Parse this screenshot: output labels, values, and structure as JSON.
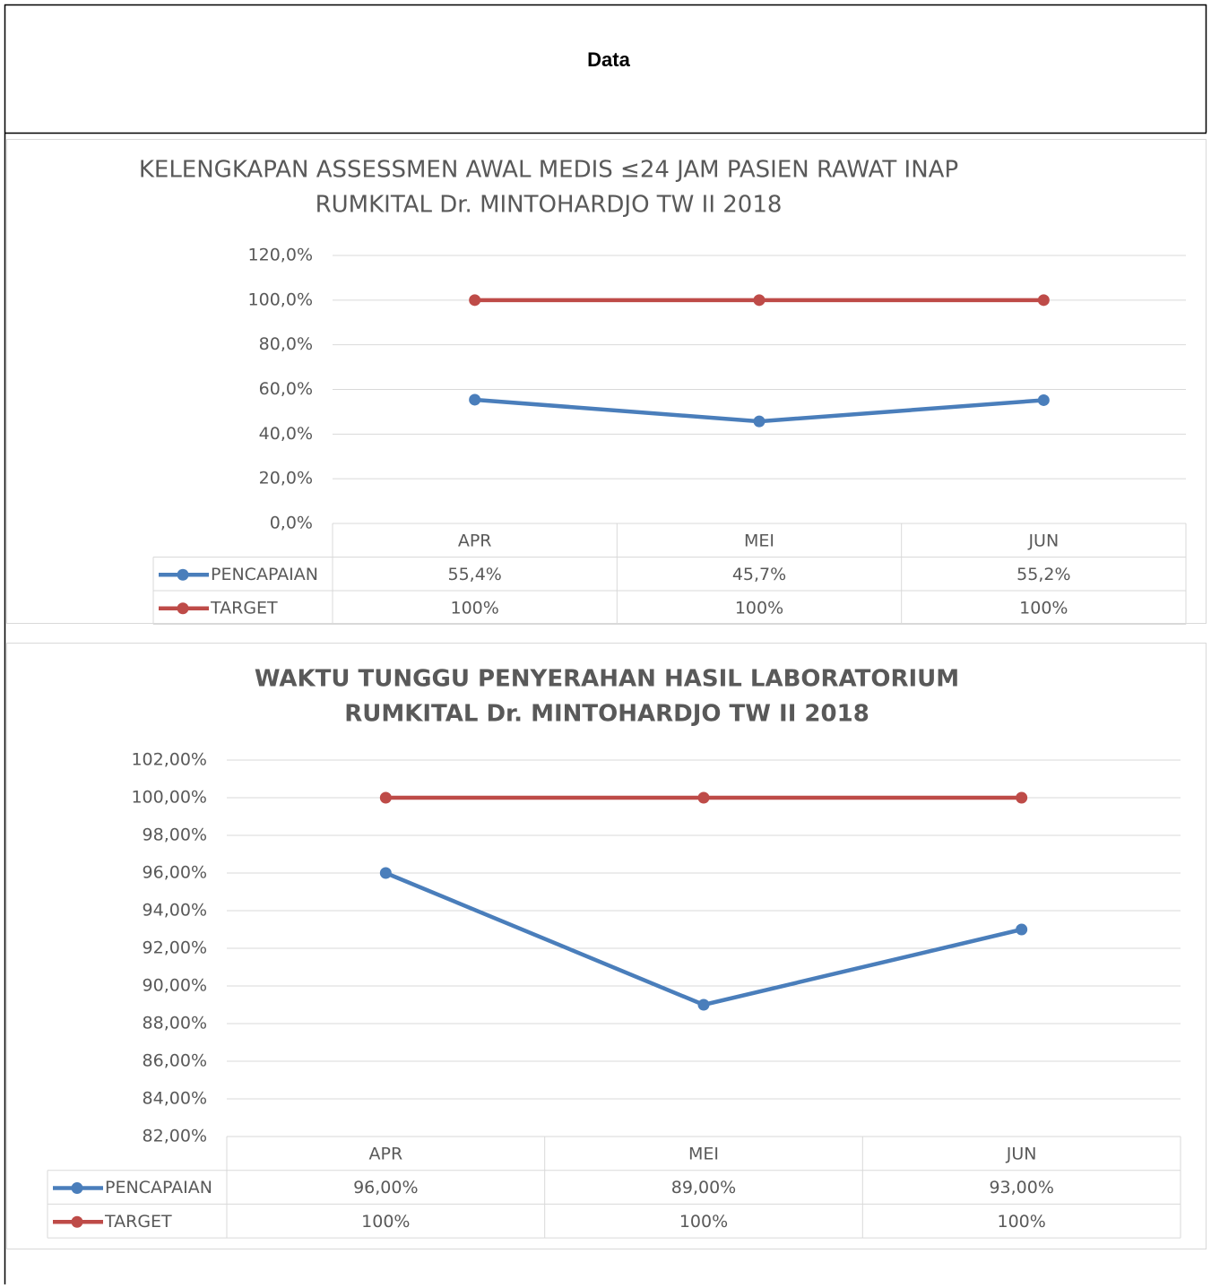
{
  "title": "Data",
  "chart_data": [
    {
      "type": "line",
      "title": [
        "KELENGKAPAN ASSESSMEN AWAL MEDIS ≤24 JAM PASIEN RAWAT INAP",
        "RUMKITAL Dr. MINTOHARDJO TW II 2018"
      ],
      "title_bold": false,
      "categories": [
        "APR",
        "MEI",
        "JUN"
      ],
      "series": [
        {
          "name": "PENCAPAIAN",
          "color": "#4a7ebb",
          "values": [
            55.4,
            45.7,
            55.2
          ],
          "value_labels": [
            "55,4%",
            "45,7%",
            "55,2%"
          ]
        },
        {
          "name": "TARGET",
          "color": "#be4b48",
          "values": [
            100,
            100,
            100
          ],
          "value_labels": [
            "100%",
            "100%",
            "100%"
          ]
        }
      ],
      "ylim": [
        0,
        120
      ],
      "yticks": [
        {
          "value": 0,
          "label": "0,0%"
        },
        {
          "value": 20,
          "label": "20,0%"
        },
        {
          "value": 40,
          "label": "40,0%"
        },
        {
          "value": 60,
          "label": "60,0%"
        },
        {
          "value": 80,
          "label": "80,0%"
        },
        {
          "value": 100,
          "label": "100,0%"
        },
        {
          "value": 120,
          "label": "120,0%"
        }
      ],
      "grid": true
    },
    {
      "type": "line",
      "title": [
        "WAKTU TUNGGU PENYERAHAN HASIL LABORATORIUM",
        "RUMKITAL Dr. MINTOHARDJO TW II 2018"
      ],
      "title_bold": true,
      "categories": [
        "APR",
        "MEI",
        "JUN"
      ],
      "series": [
        {
          "name": "PENCAPAIAN",
          "color": "#4a7ebb",
          "values": [
            96,
            89,
            93
          ],
          "value_labels": [
            "96,00%",
            "89,00%",
            "93,00%"
          ]
        },
        {
          "name": "TARGET",
          "color": "#be4b48",
          "values": [
            100,
            100,
            100
          ],
          "value_labels": [
            "100%",
            "100%",
            "100%"
          ]
        }
      ],
      "ylim": [
        82,
        102
      ],
      "yticks": [
        {
          "value": 82,
          "label": "82,00%"
        },
        {
          "value": 84,
          "label": "84,00%"
        },
        {
          "value": 86,
          "label": "86,00%"
        },
        {
          "value": 88,
          "label": "88,00%"
        },
        {
          "value": 90,
          "label": "90,00%"
        },
        {
          "value": 92,
          "label": "92,00%"
        },
        {
          "value": 94,
          "label": "94,00%"
        },
        {
          "value": 96,
          "label": "96,00%"
        },
        {
          "value": 98,
          "label": "98,00%"
        },
        {
          "value": 100,
          "label": "100,00%"
        },
        {
          "value": 102,
          "label": "102,00%"
        }
      ],
      "grid": true
    }
  ]
}
